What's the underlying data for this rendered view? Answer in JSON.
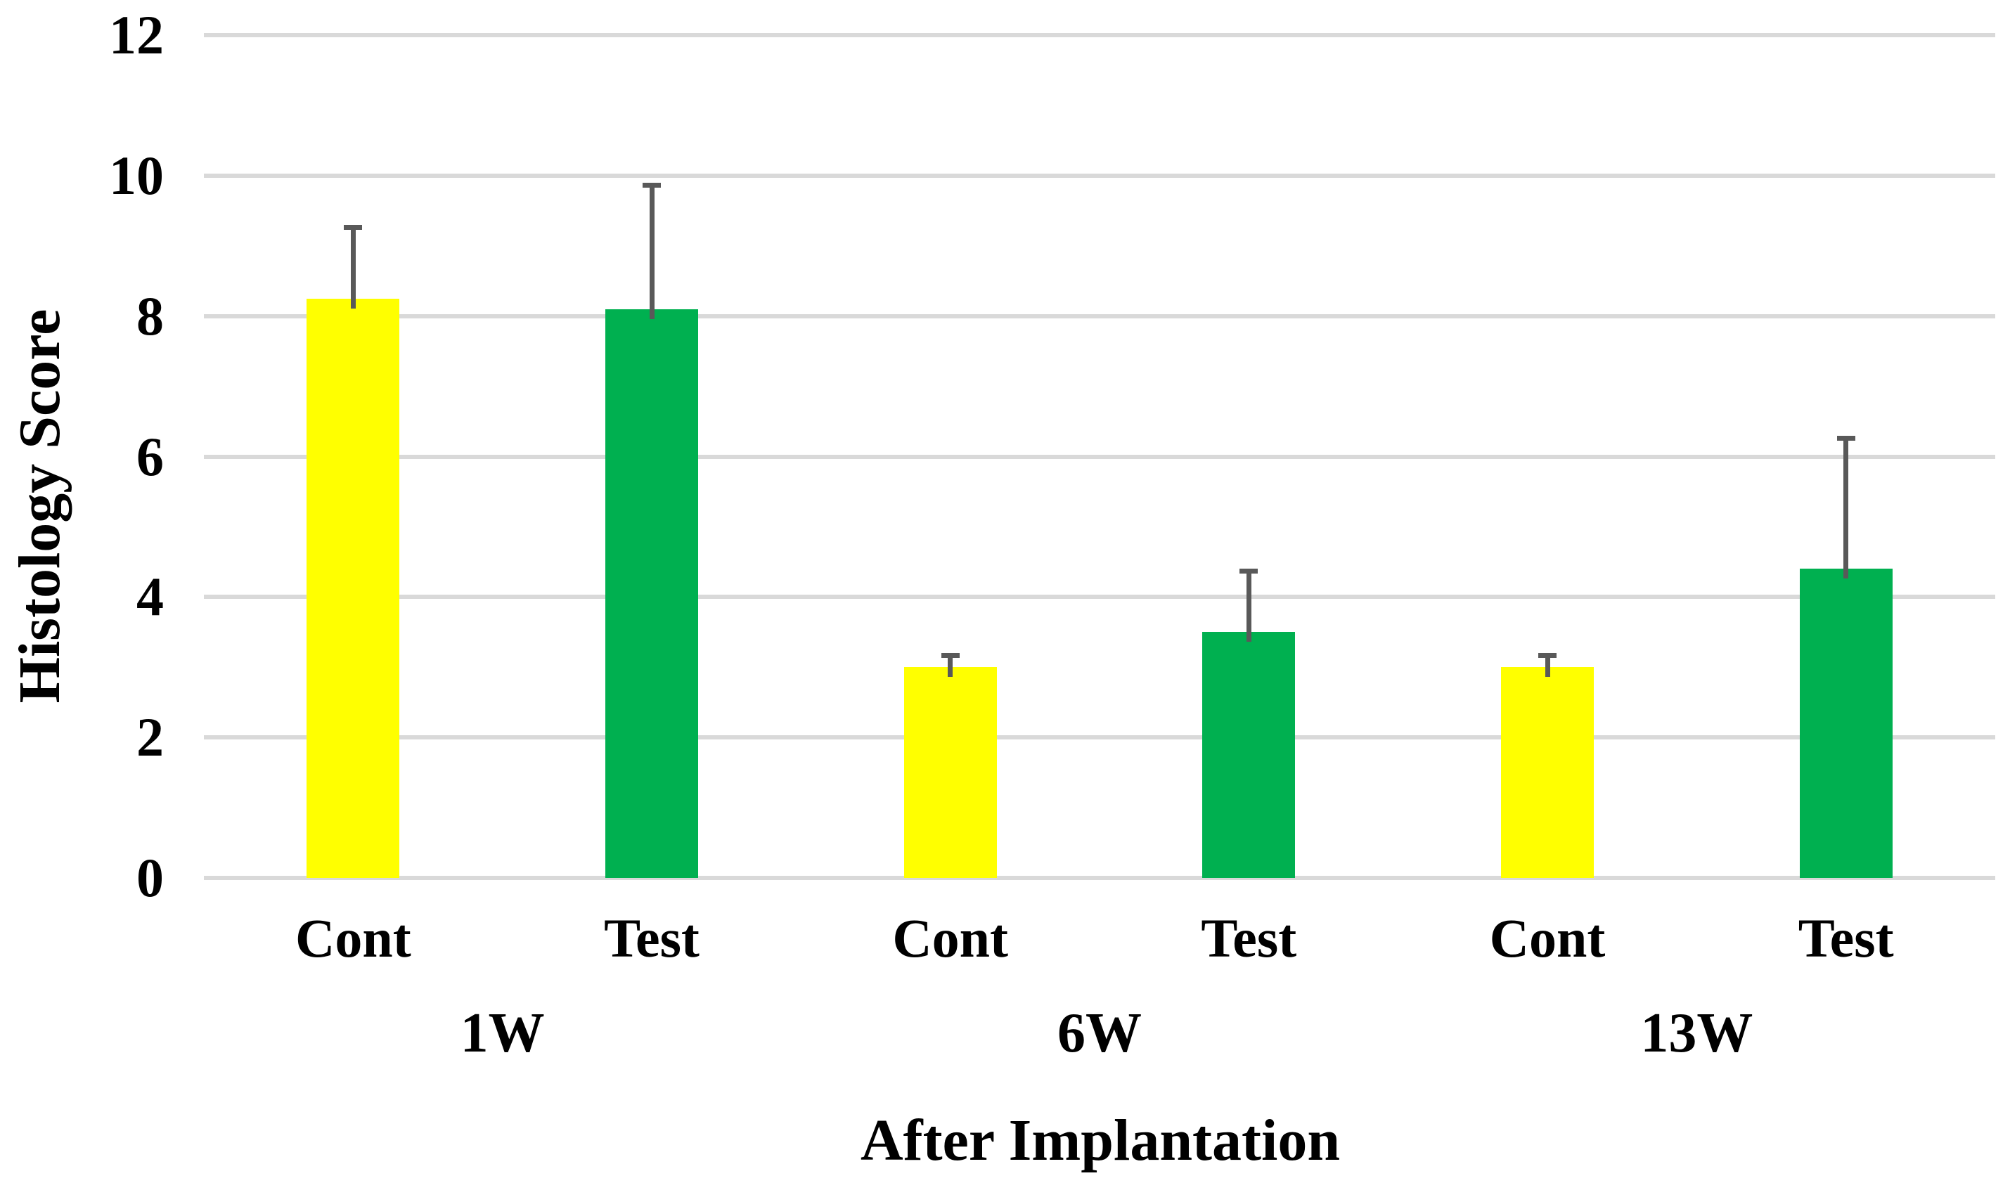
{
  "chart_data": {
    "type": "bar",
    "title": "",
    "ylabel": "Histology Score",
    "xlabel": "After Implantation",
    "ylim": [
      0,
      12
    ],
    "yticks": [
      0,
      2,
      4,
      6,
      8,
      10,
      12
    ],
    "grid": true,
    "legend_position": "none",
    "gridline_color": "#D9D9D9",
    "error_bar_color": "#595959",
    "series_colors": {
      "Cont": "#FFFF00",
      "Test": "#00B050"
    },
    "groups": [
      {
        "label": "1W",
        "bars": [
          {
            "label": "Cont",
            "value": 8.25,
            "error_plus": 1.05,
            "color": "#FFFF00"
          },
          {
            "label": "Test",
            "value": 8.1,
            "error_plus": 1.8,
            "color": "#00B050"
          }
        ]
      },
      {
        "label": "6W",
        "bars": [
          {
            "label": "Cont",
            "value": 3.0,
            "error_plus": 0.2,
            "color": "#FFFF00"
          },
          {
            "label": "Test",
            "value": 3.5,
            "error_plus": 0.9,
            "color": "#00B050"
          }
        ]
      },
      {
        "label": "13W",
        "bars": [
          {
            "label": "Cont",
            "value": 3.0,
            "error_plus": 0.2,
            "color": "#FFFF00"
          },
          {
            "label": "Test",
            "value": 4.4,
            "error_plus": 1.9,
            "color": "#00B050"
          }
        ]
      }
    ]
  }
}
